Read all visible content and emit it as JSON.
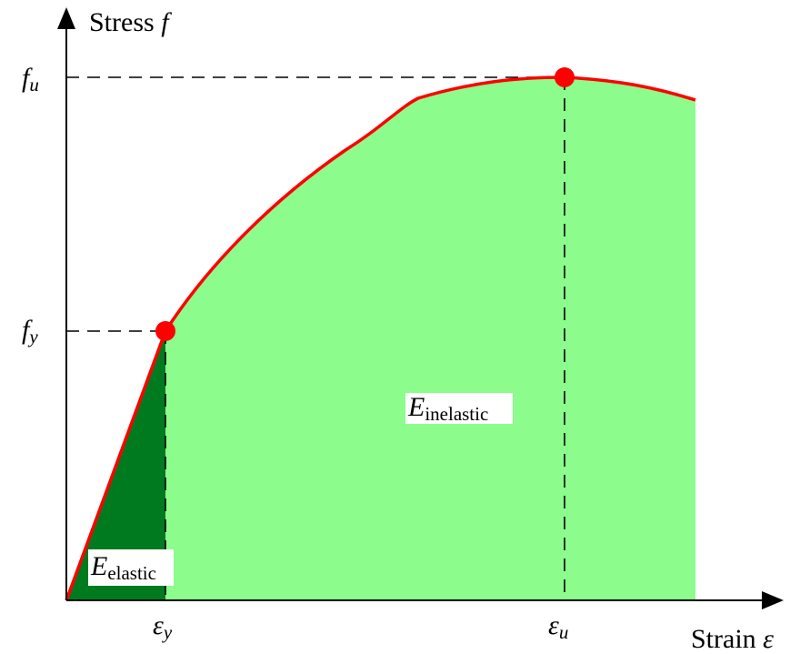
{
  "y_axis": {
    "word": "Stress",
    "symbol": "f"
  },
  "x_axis": {
    "word": "Strain",
    "symbol": "ε"
  },
  "ticks": {
    "f_u": {
      "symbol": "f",
      "sub": "u"
    },
    "f_y": {
      "symbol": "f",
      "sub": "y"
    },
    "eps_y": {
      "symbol": "ε",
      "sub": "y"
    },
    "eps_u": {
      "symbol": "ε",
      "sub": "u"
    }
  },
  "regions": {
    "elastic": {
      "symbol": "E",
      "sub": "elastic"
    },
    "inelastic": {
      "symbol": "E",
      "sub": "inelastic"
    }
  }
}
